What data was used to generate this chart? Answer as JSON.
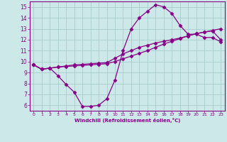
{
  "xlabel": "Windchill (Refroidissement éolien,°C)",
  "bg_color": "#cce8e8",
  "line_color": "#880088",
  "marker": "D",
  "markersize": 2.5,
  "linewidth": 0.9,
  "xlim": [
    -0.5,
    23.5
  ],
  "ylim": [
    5.5,
    15.5
  ],
  "xticks": [
    0,
    1,
    2,
    3,
    4,
    5,
    6,
    7,
    8,
    9,
    10,
    11,
    12,
    13,
    14,
    15,
    16,
    17,
    18,
    19,
    20,
    21,
    22,
    23
  ],
  "yticks": [
    6,
    7,
    8,
    9,
    10,
    11,
    12,
    13,
    14,
    15
  ],
  "grid_color": "#aacccc",
  "series1": [
    9.7,
    9.3,
    9.4,
    8.7,
    7.9,
    7.2,
    5.9,
    5.9,
    6.0,
    6.6,
    8.3,
    11.0,
    13.0,
    14.0,
    14.6,
    15.2,
    15.0,
    14.4,
    13.3,
    12.5,
    12.5,
    12.2,
    12.2,
    11.8
  ],
  "series2": [
    9.7,
    9.3,
    9.4,
    9.5,
    9.6,
    9.7,
    9.75,
    9.8,
    9.85,
    9.9,
    10.3,
    10.7,
    11.0,
    11.3,
    11.5,
    11.7,
    11.85,
    12.0,
    12.15,
    12.35,
    12.55,
    12.7,
    12.85,
    13.0
  ],
  "series3": [
    9.7,
    9.3,
    9.4,
    9.5,
    9.55,
    9.6,
    9.65,
    9.7,
    9.75,
    9.8,
    10.0,
    10.25,
    10.5,
    10.75,
    11.0,
    11.3,
    11.6,
    11.85,
    12.1,
    12.35,
    12.55,
    12.7,
    12.8,
    12.0
  ]
}
